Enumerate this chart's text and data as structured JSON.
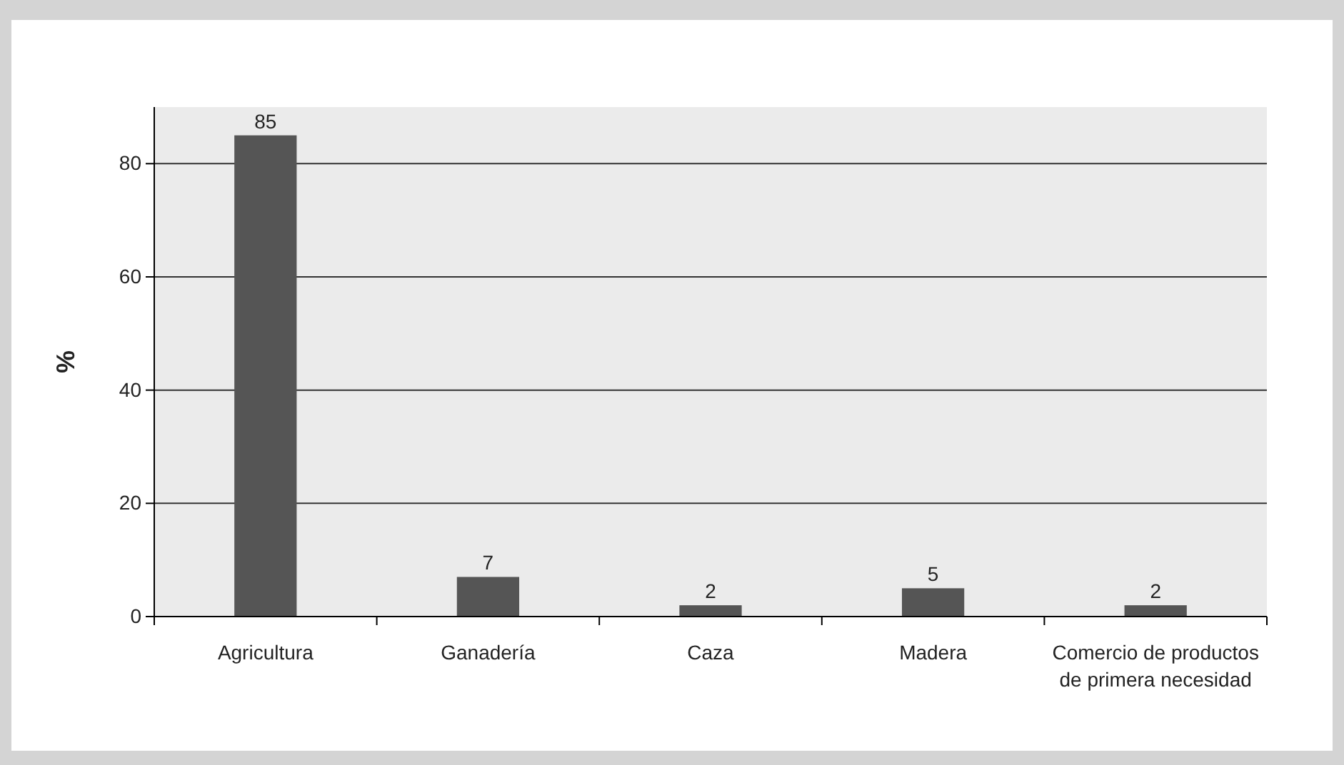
{
  "chart_data": {
    "type": "bar",
    "ylabel": "%",
    "categories": [
      "Agricultura",
      "Ganadería",
      "Caza",
      "Madera",
      "Comercio de productos de primera necesidad"
    ],
    "values": [
      85,
      7,
      2,
      5,
      2
    ],
    "color": "#555555",
    "ylim": [
      0,
      90
    ],
    "yticks": [
      0,
      20,
      40,
      60,
      80
    ],
    "grid": "y",
    "data_labels": true
  }
}
